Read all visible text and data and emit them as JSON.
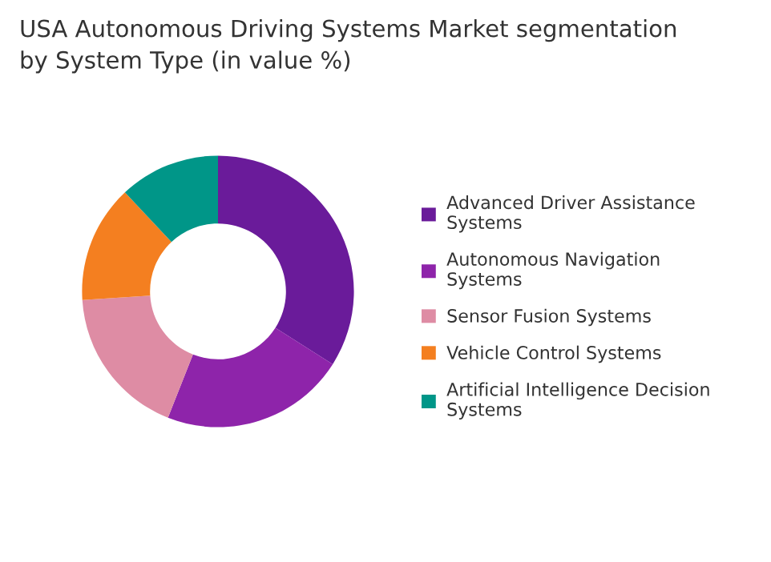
{
  "chart_data": {
    "type": "donut",
    "title": "USA Autonomous Driving Systems Market segmentation\nby System Type (in value %)",
    "categories": [
      "Advanced Driver Assistance\nSystems",
      "Autonomous Navigation\nSystems",
      "Sensor Fusion Systems",
      "Vehicle Control Systems",
      "Artificial Intelligence Decision\nSystems"
    ],
    "values": [
      34,
      22,
      18,
      14,
      12
    ],
    "colors": [
      "#6a1b9a",
      "#8e24aa",
      "#de8ca4",
      "#f47f20",
      "#009688"
    ],
    "legend": "right"
  }
}
